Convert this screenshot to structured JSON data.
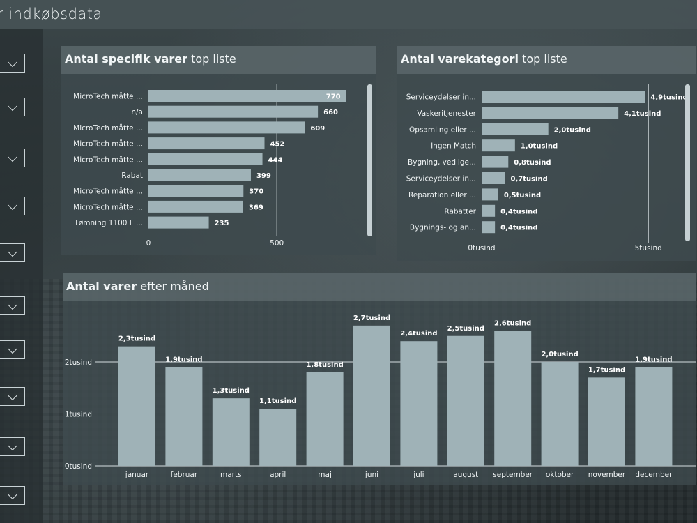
{
  "page": {
    "title": "r indkøbsdata"
  },
  "colors": {
    "bar": "#9fb2b7",
    "text": "#f0f4f5",
    "gridline": "#d5dde0"
  },
  "slicers": {
    "count": 10,
    "icon": "chevron-down-icon"
  },
  "card1": {
    "title_bold": "Antal specifik varer",
    "title_rest": " top liste"
  },
  "card2": {
    "title_bold": "Antal varekategori",
    "title_rest": " top liste"
  },
  "card3": {
    "title_bold": "Antal varer",
    "title_rest": " efter måned"
  },
  "chart_data": [
    {
      "type": "bar",
      "orientation": "horizontal",
      "categories": [
        "MicroTech måtte ...",
        "n/a",
        "MicroTech måtte ...",
        "MicroTech måtte ...",
        "MicroTech måtte ...",
        "Rabat",
        "MicroTech måtte ...",
        "MicroTech måtte ...",
        "Tømning 1100 L ..."
      ],
      "values": [
        770,
        660,
        609,
        452,
        444,
        399,
        370,
        369,
        235
      ],
      "value_labels": [
        "770",
        "660",
        "609",
        "452",
        "444",
        "399",
        "370",
        "369",
        "235"
      ],
      "xlim": [
        0,
        790
      ],
      "x_ticks": [
        0,
        500
      ],
      "x_tick_labels": [
        "0",
        "500"
      ],
      "grid": true
    },
    {
      "type": "bar",
      "orientation": "horizontal",
      "categories": [
        "Serviceydelser in...",
        "Vaskeritjenester",
        "Opsamling eller ...",
        "Ingen Match",
        "Bygning, vedlige...",
        "Serviceydelser in...",
        "Reparation eller ...",
        "Rabatter",
        "Bygnings- og an..."
      ],
      "values": [
        4900,
        4100,
        2000,
        1000,
        800,
        700,
        500,
        400,
        400
      ],
      "value_labels": [
        "4,9tusind",
        "4,1tusind",
        "2,0tusind",
        "1,0tusind",
        "0,8tusind",
        "0,7tusind",
        "0,5tusind",
        "0,4tusind",
        "0,4tusind"
      ],
      "xlim": [
        0,
        5100
      ],
      "x_ticks": [
        0,
        5000
      ],
      "x_tick_labels": [
        "0tusind",
        "5tusind"
      ],
      "grid": true
    },
    {
      "type": "bar",
      "orientation": "vertical",
      "categories": [
        "januar",
        "februar",
        "marts",
        "april",
        "maj",
        "juni",
        "juli",
        "august",
        "september",
        "oktober",
        "november",
        "december"
      ],
      "values": [
        2300,
        1900,
        1300,
        1100,
        1800,
        2700,
        2400,
        2500,
        2600,
        2000,
        1700,
        1900
      ],
      "value_labels": [
        "2,3tusind",
        "1,9tusind",
        "1,3tusind",
        "1,1tusind",
        "1,8tusind",
        "2,7tusind",
        "2,4tusind",
        "2,5tusind",
        "2,6tusind",
        "2,0tusind",
        "1,7tusind",
        "1,9tusind"
      ],
      "ylim": [
        0,
        2700
      ],
      "y_ticks": [
        0,
        1000,
        2000
      ],
      "y_tick_labels": [
        "0tusind",
        "1tusind",
        "2tusind"
      ],
      "grid": true
    }
  ]
}
